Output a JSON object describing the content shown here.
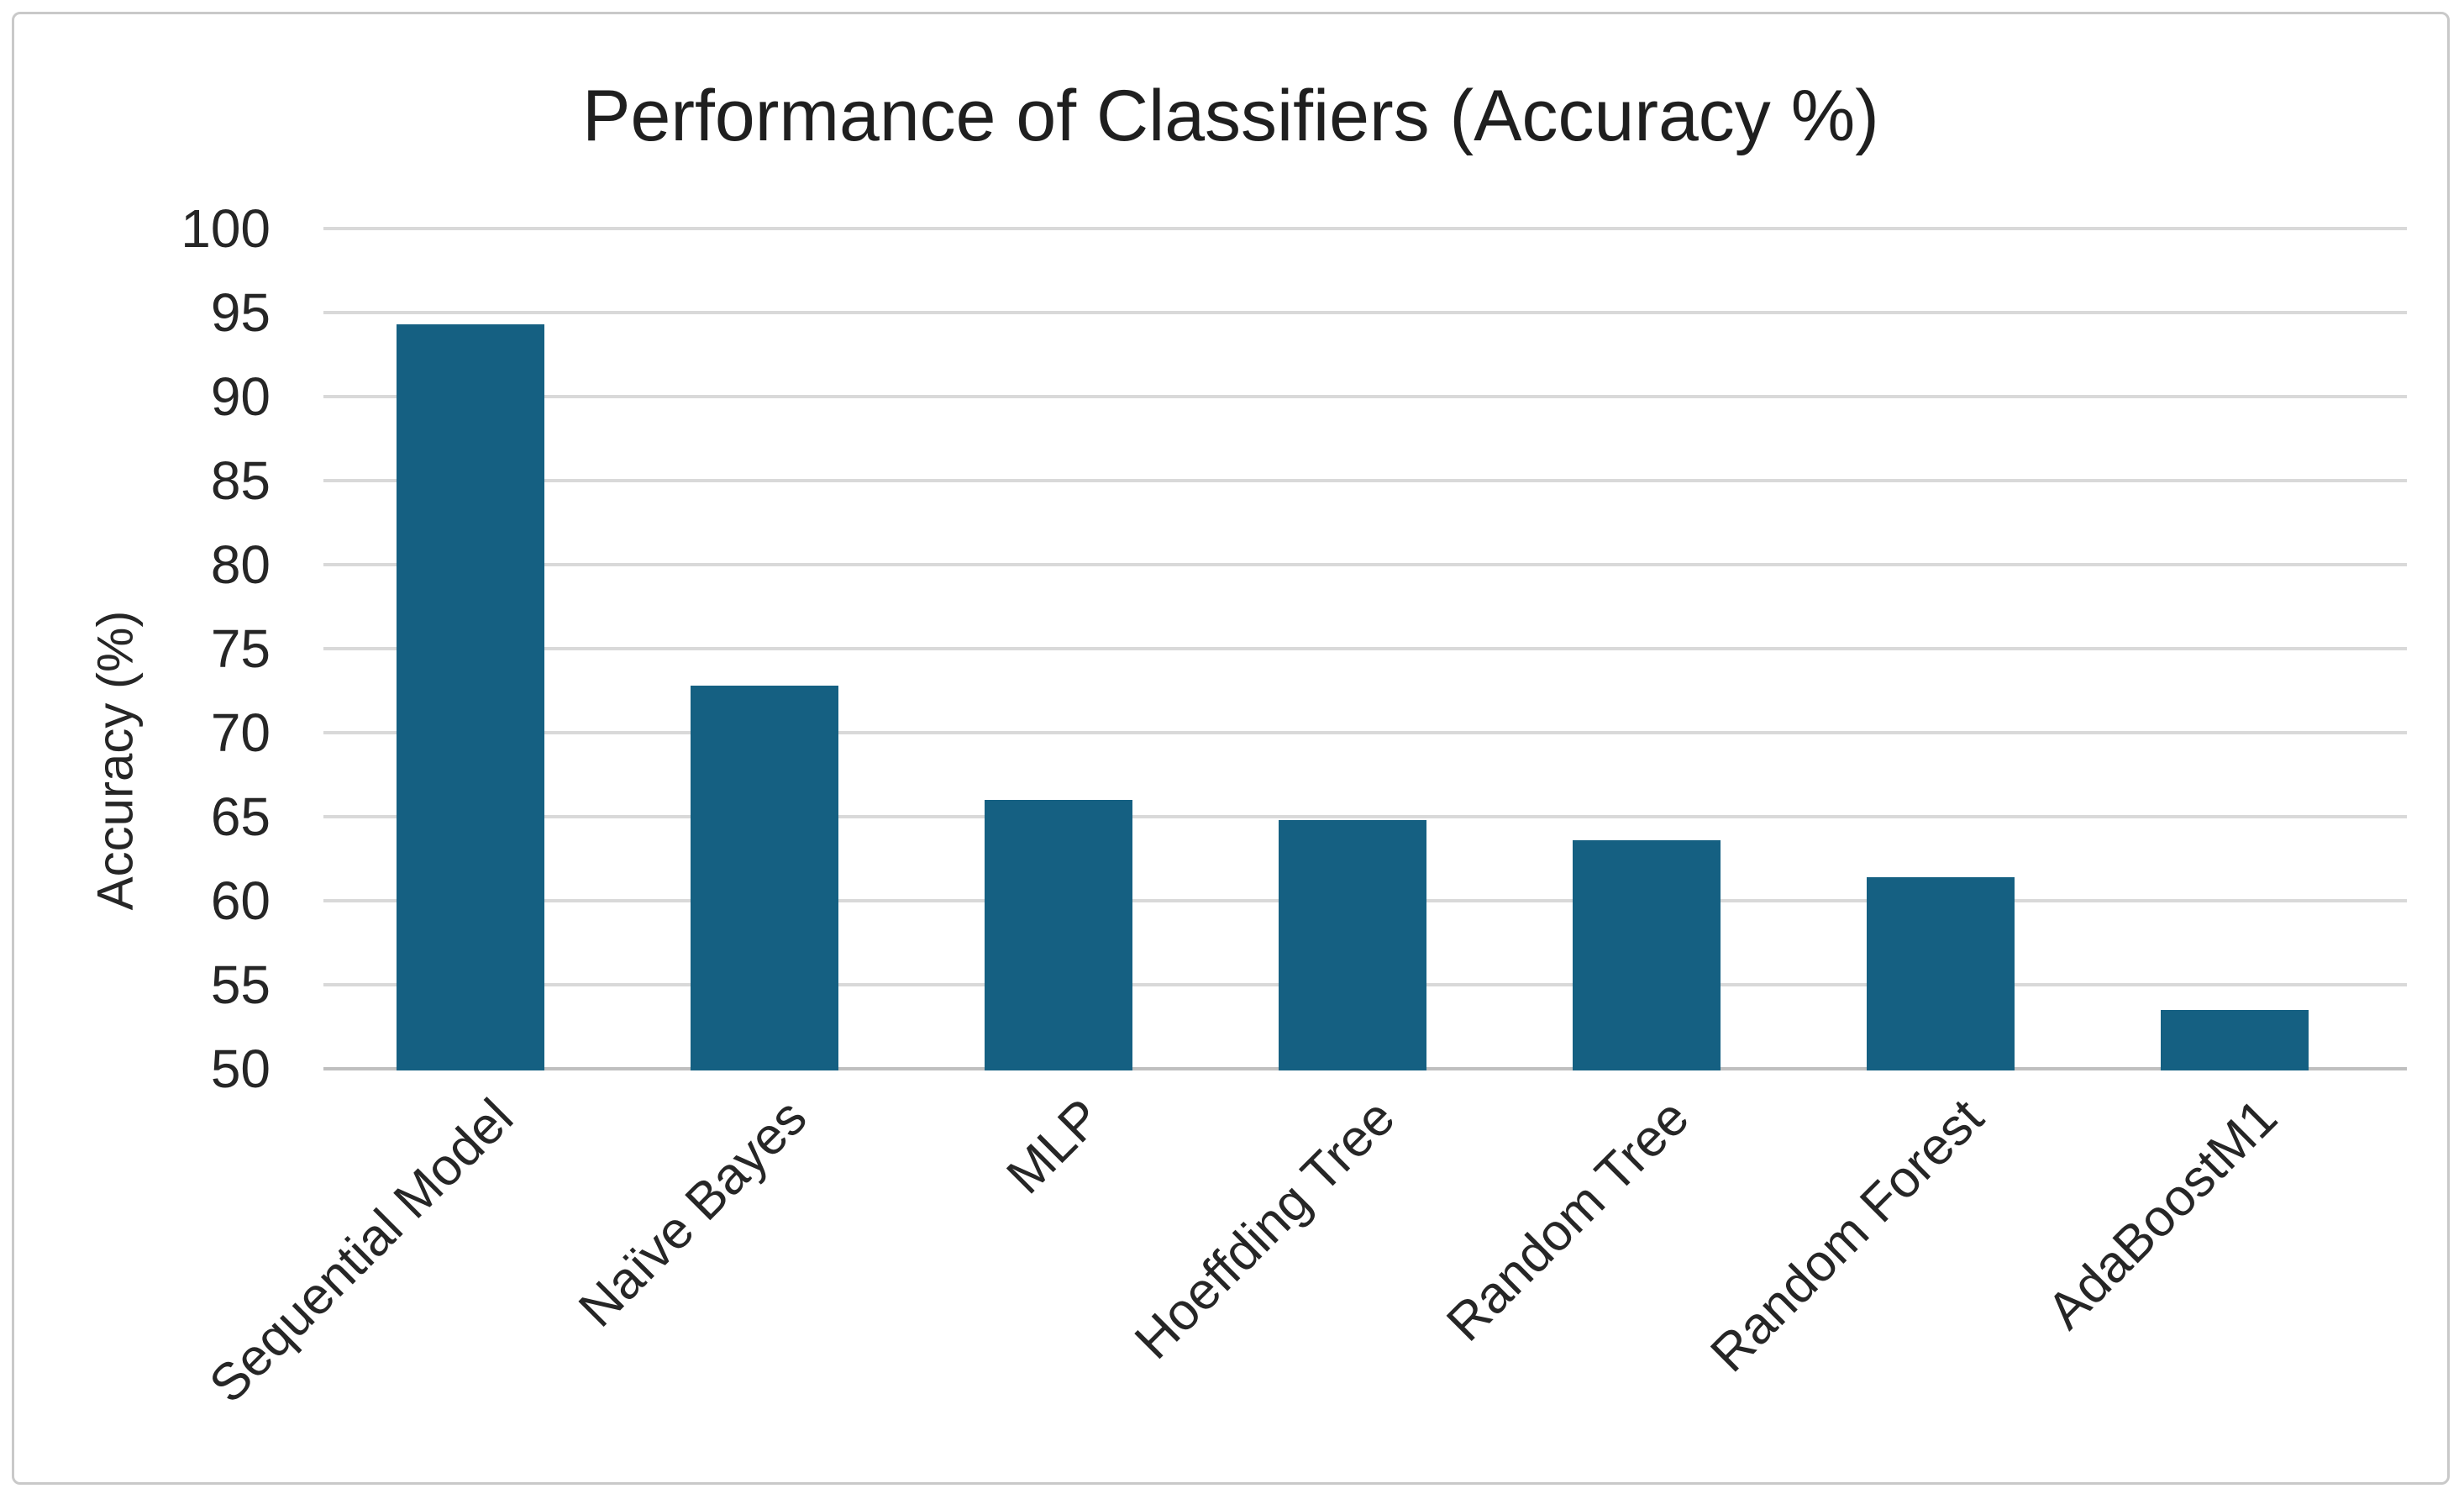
{
  "chart_data": {
    "type": "bar",
    "title": "Performance of Classifiers (Accuracy %)",
    "xlabel": "",
    "ylabel": "Accuracy (%)",
    "categories": [
      "Sequential Model",
      "Naïve Bayes",
      "MLP",
      "Hoeffding Tree",
      "Random Tree",
      "Random Forest",
      "AdaBoostM1"
    ],
    "values": [
      94.3,
      72.8,
      66.0,
      64.8,
      63.6,
      61.4,
      53.5
    ],
    "ylim": [
      50,
      100
    ],
    "ytick_step": 5,
    "yticks": [
      100,
      95,
      90,
      85,
      80,
      75,
      70,
      65,
      60,
      55,
      50
    ],
    "grid": true,
    "legend_position": "none",
    "bar_color": "#156082",
    "gridline_color": "#D9D9D9",
    "axis_line_color": "#BFBFBF",
    "text_color": "#262626",
    "title_color": "#1F1F1F",
    "frame_border_color": "#C9C9C9"
  }
}
